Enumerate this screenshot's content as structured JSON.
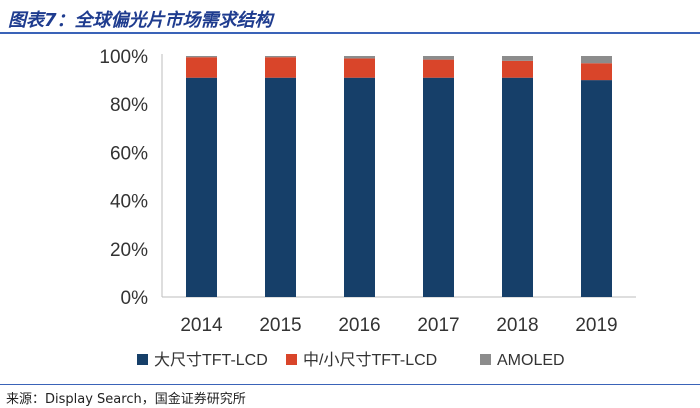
{
  "header": {
    "title": "图表7：全球偏光片市场需求结构"
  },
  "footer": {
    "source": "来源：Display Search，国金证券研究所"
  },
  "colors": {
    "large": "#163f69",
    "medium": "#d9452a",
    "amoled": "#8c8c8c",
    "axis": "#bdbdbd",
    "text": "#333333"
  },
  "chart_data": {
    "type": "bar",
    "stacked": true,
    "title": "",
    "xlabel": "",
    "ylabel": "",
    "ylim": [
      0,
      100
    ],
    "y_ticks": [
      0,
      20,
      40,
      60,
      80,
      100
    ],
    "y_tick_labels": [
      "0%",
      "20%",
      "40%",
      "60%",
      "80%",
      "100%"
    ],
    "categories": [
      "2014",
      "2015",
      "2016",
      "2017",
      "2018",
      "2019"
    ],
    "series": [
      {
        "name": "大尺寸TFT-LCD",
        "color_key": "large",
        "values": [
          91,
          91,
          91,
          91,
          91,
          90
        ]
      },
      {
        "name": "中/小尺寸TFT-LCD",
        "color_key": "medium",
        "values": [
          8.5,
          8.5,
          8,
          7.5,
          7,
          7
        ]
      },
      {
        "name": "AMOLED",
        "color_key": "amoled",
        "values": [
          0.5,
          0.5,
          1,
          1.5,
          2,
          3
        ]
      }
    ],
    "legend_position": "bottom",
    "grid": false
  }
}
